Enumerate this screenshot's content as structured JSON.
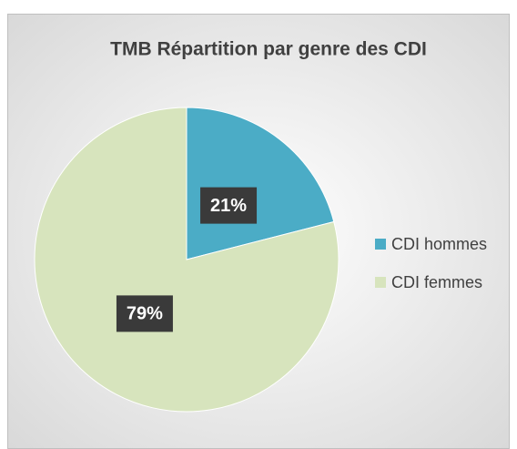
{
  "chart_data": {
    "type": "pie",
    "title": "TMB Répartition par genre des CDI",
    "categories": [
      "CDI hommes",
      "CDI femmes"
    ],
    "values": [
      21,
      79
    ],
    "value_labels": [
      "21%",
      "79%"
    ],
    "colors": [
      "#4bacc6",
      "#d7e4bd"
    ],
    "legend": "right"
  }
}
